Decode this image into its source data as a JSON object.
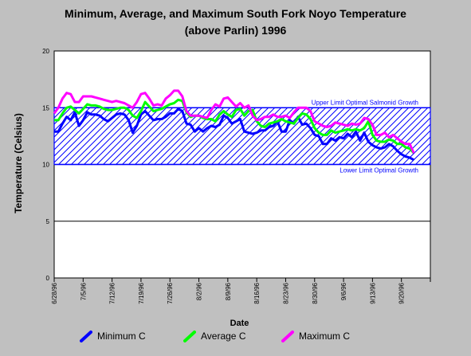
{
  "chart_data": {
    "type": "line",
    "title": "Minimum, Average, and Maximum South Fork Noyo Temperature",
    "subtitle": "(above Parlin) 1996",
    "xlabel": "Date",
    "ylabel": "Temperature (Celsius)",
    "ylim": [
      0,
      20
    ],
    "yticks": [
      0,
      5,
      10,
      15,
      20
    ],
    "x_start": "1996-06-28",
    "x_end": "1996-09-27",
    "xticks": [
      "6/28/96",
      "7/5/96",
      "7/12/96",
      "7/19/96",
      "7/26/96",
      "8/2/96",
      "8/9/96",
      "8/16/96",
      "8/23/96",
      "8/30/96",
      "9/6/96",
      "9/13/96",
      "9/20/96"
    ],
    "grid": "horizontal",
    "band": {
      "upper": 15,
      "lower": 10,
      "upper_label": "Upper Limit Optimal Salmonid Growth",
      "lower_label": "Lower Limit Optimal Growth",
      "color": "#0000ff"
    },
    "series": [
      {
        "name": "Minimum C",
        "color": "#0000ff",
        "values": [
          12.9,
          12.9,
          13.6,
          14.2,
          13.9,
          14.6,
          13.4,
          13.9,
          14.6,
          14.4,
          14.4,
          14.3,
          14.0,
          13.8,
          14.1,
          14.4,
          14.5,
          14.4,
          13.9,
          12.8,
          13.4,
          14.4,
          14.7,
          14.3,
          13.9,
          14.0,
          14.0,
          14.2,
          14.5,
          14.5,
          14.9,
          14.7,
          13.6,
          13.5,
          12.9,
          13.2,
          12.9,
          13.2,
          13.4,
          13.3,
          13.5,
          14.3,
          14.1,
          13.6,
          13.8,
          14.0,
          12.9,
          12.8,
          12.7,
          12.8,
          13.0,
          13.0,
          13.3,
          13.4,
          13.8,
          12.9,
          12.9,
          13.9,
          13.6,
          14.2,
          13.5,
          13.6,
          13.2,
          12.6,
          12.5,
          11.8,
          11.8,
          12.3,
          12.1,
          12.4,
          12.3,
          12.7,
          12.4,
          12.9,
          12.1,
          12.8,
          12.0,
          11.7,
          11.5,
          11.4,
          11.5,
          11.8,
          11.6,
          11.2,
          10.9,
          10.7,
          10.6,
          10.4
        ]
      },
      {
        "name": "Average C",
        "color": "#00ff00",
        "values": [
          13.9,
          13.9,
          14.5,
          15.0,
          15.1,
          14.8,
          14.5,
          14.9,
          15.3,
          15.2,
          15.2,
          15.1,
          14.9,
          14.8,
          14.8,
          14.9,
          15.0,
          15.0,
          14.8,
          14.3,
          14.1,
          14.7,
          15.5,
          15.1,
          14.7,
          14.8,
          14.9,
          15.1,
          15.3,
          15.4,
          15.7,
          15.6,
          14.6,
          14.2,
          14.3,
          14.3,
          14.1,
          14.0,
          14.0,
          13.8,
          14.4,
          14.7,
          14.4,
          14.2,
          14.8,
          14.9,
          14.3,
          14.7,
          14.8,
          13.8,
          13.4,
          13.3,
          13.6,
          13.7,
          13.8,
          14.0,
          13.8,
          13.7,
          13.6,
          14.1,
          14.5,
          14.4,
          14.0,
          13.2,
          12.8,
          12.6,
          12.6,
          13.0,
          12.8,
          12.9,
          13.0,
          13.1,
          13.0,
          13.1,
          13.0,
          13.2,
          13.8,
          12.6,
          12.1,
          12.0,
          12.0,
          12.2,
          12.1,
          11.8,
          11.8,
          11.5,
          11.4,
          11.0
        ]
      },
      {
        "name": "Maximum C",
        "color": "#ff00ff",
        "values": [
          14.5,
          15.0,
          15.8,
          16.3,
          16.2,
          15.5,
          15.5,
          16.0,
          16.0,
          16.0,
          15.9,
          15.8,
          15.7,
          15.6,
          15.5,
          15.6,
          15.5,
          15.4,
          15.2,
          15.0,
          15.5,
          16.2,
          16.3,
          15.8,
          15.2,
          15.3,
          15.2,
          15.8,
          16.1,
          16.5,
          16.5,
          16.0,
          14.7,
          14.3,
          14.3,
          14.3,
          14.2,
          14.1,
          14.8,
          15.3,
          15.1,
          15.8,
          15.9,
          15.5,
          15.1,
          15.4,
          15.0,
          15.2,
          14.3,
          13.9,
          14.0,
          14.2,
          14.2,
          14.4,
          14.2,
          14.2,
          14.3,
          14.1,
          14.6,
          15.0,
          15.0,
          15.0,
          14.7,
          13.8,
          13.6,
          13.4,
          13.3,
          13.4,
          13.7,
          13.6,
          13.5,
          13.4,
          13.6,
          13.5,
          13.6,
          14.1,
          14.0,
          13.5,
          12.6,
          12.6,
          12.8,
          12.4,
          12.6,
          12.3,
          12.0,
          11.8,
          11.8,
          11.0
        ]
      }
    ]
  }
}
